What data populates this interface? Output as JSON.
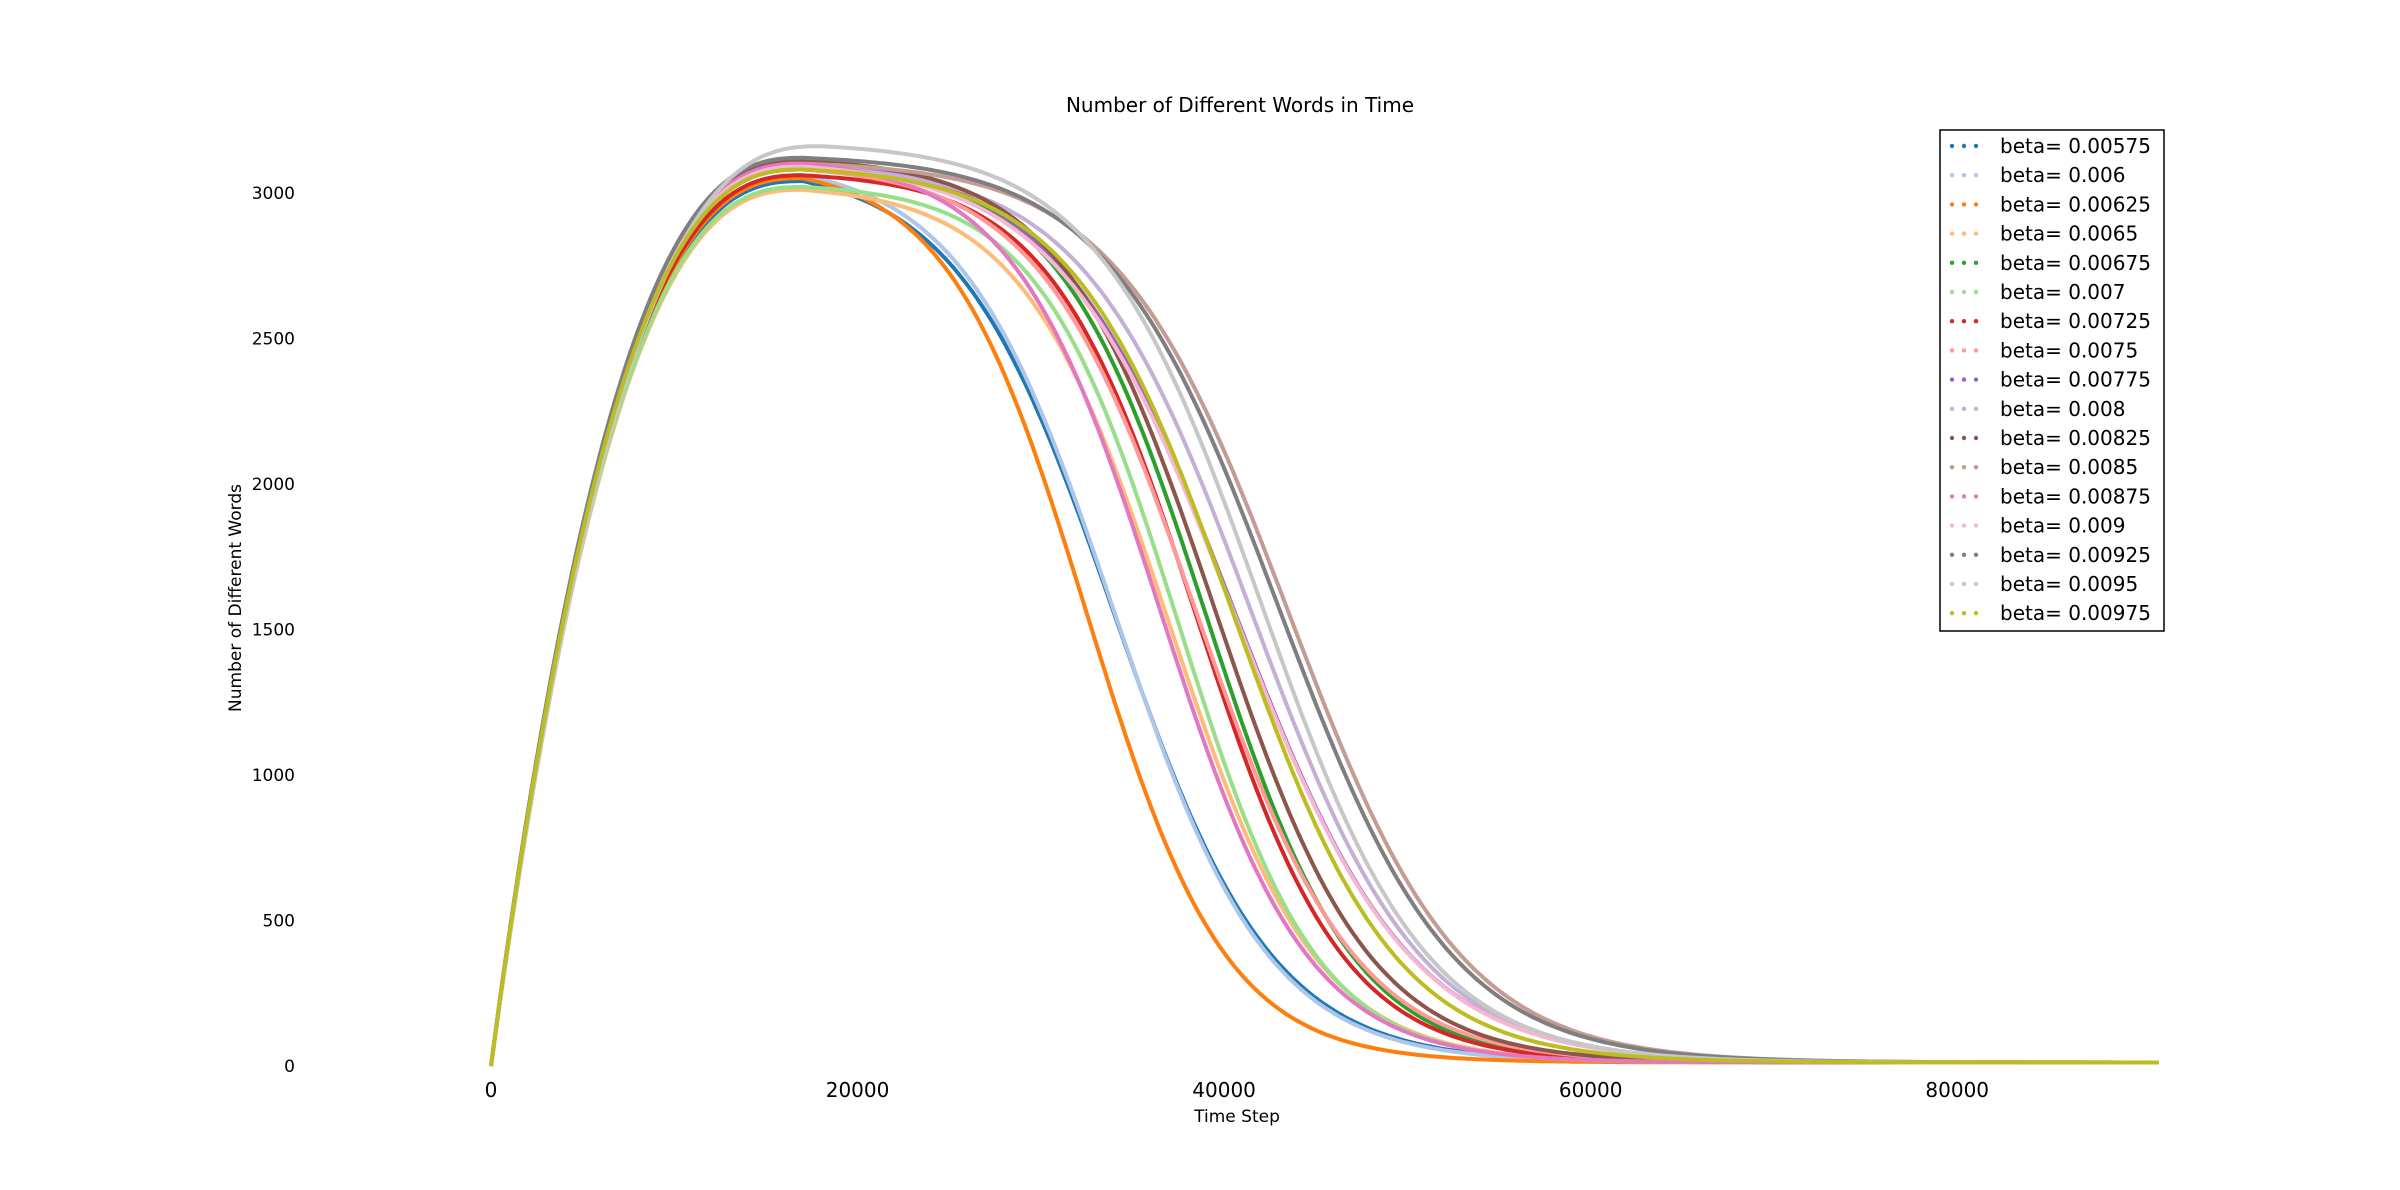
{
  "chart_data": {
    "type": "line",
    "title": "Number of Different Words in Time",
    "xlabel": "Time Step",
    "ylabel": "Number of Different Words",
    "xlim": [
      -6000,
      91500
    ],
    "ylim": [
      0,
      3250
    ],
    "x_ticks": [
      "0",
      "20000",
      "40000",
      "60000",
      "80000"
    ],
    "y_ticks": [
      "0",
      "500",
      "1000",
      "1500",
      "2000",
      "2500",
      "3000"
    ],
    "legend_position": "top-right",
    "series": [
      {
        "name": "beta= 0.00575",
        "color": "#1f77b4",
        "rise_end": 17000,
        "peak": 3040,
        "drop_start": 20000,
        "midpoint": 34000,
        "width": 4300
      },
      {
        "name": "beta= 0.006",
        "color": "#aec7e8",
        "rise_end": 17000,
        "peak": 3060,
        "drop_start": 21000,
        "midpoint": 34000,
        "width": 4200
      },
      {
        "name": "beta= 0.00625",
        "color": "#ff7f0e",
        "rise_end": 17000,
        "peak": 3050,
        "drop_start": 23000,
        "midpoint": 32500,
        "width": 3800
      },
      {
        "name": "beta= 0.0065",
        "color": "#ffbb78",
        "rise_end": 17000,
        "peak": 3010,
        "drop_start": 20000,
        "midpoint": 37000,
        "width": 4000
      },
      {
        "name": "beta= 0.00675",
        "color": "#2ca02c",
        "rise_end": 17000,
        "peak": 3080,
        "drop_start": 24000,
        "midpoint": 39000,
        "width": 4000
      },
      {
        "name": "beta= 0.007",
        "color": "#98df8a",
        "rise_end": 17000,
        "peak": 3020,
        "drop_start": 24000,
        "midpoint": 37500,
        "width": 3800
      },
      {
        "name": "beta= 0.00725",
        "color": "#d62728",
        "rise_end": 17000,
        "peak": 3060,
        "drop_start": 25000,
        "midpoint": 38500,
        "width": 4000
      },
      {
        "name": "beta= 0.0075",
        "color": "#ff9896",
        "rise_end": 17000,
        "peak": 3080,
        "drop_start": 25000,
        "midpoint": 38500,
        "width": 4300
      },
      {
        "name": "beta= 0.00775",
        "color": "#9467bd",
        "rise_end": 17000,
        "peak": 3110,
        "drop_start": 26000,
        "midpoint": 40500,
        "width": 4800
      },
      {
        "name": "beta= 0.008",
        "color": "#c5b0d5",
        "rise_end": 17000,
        "peak": 3090,
        "drop_start": 26000,
        "midpoint": 41500,
        "width": 4600
      },
      {
        "name": "beta= 0.00825",
        "color": "#8c564b",
        "rise_end": 17000,
        "peak": 3110,
        "drop_start": 26000,
        "midpoint": 39500,
        "width": 4200
      },
      {
        "name": "beta= 0.0085",
        "color": "#c49c94",
        "rise_end": 17000,
        "peak": 3100,
        "drop_start": 27000,
        "midpoint": 43500,
        "width": 4700
      },
      {
        "name": "beta= 0.00875",
        "color": "#e377c2",
        "rise_end": 17000,
        "peak": 3100,
        "drop_start": 24000,
        "midpoint": 36500,
        "width": 4000
      },
      {
        "name": "beta= 0.009",
        "color": "#f7b6d2",
        "rise_end": 17000,
        "peak": 3090,
        "drop_start": 26000,
        "midpoint": 40500,
        "width": 4800
      },
      {
        "name": "beta= 0.00925",
        "color": "#7f7f7f",
        "rise_end": 17000,
        "peak": 3120,
        "drop_start": 27000,
        "midpoint": 43000,
        "width": 4700
      },
      {
        "name": "beta= 0.0095",
        "color": "#c7c7c7",
        "rise_end": 18000,
        "peak": 3160,
        "drop_start": 25000,
        "midpoint": 42000,
        "width": 4500
      },
      {
        "name": "beta= 0.00975",
        "color": "#bcbd22",
        "rise_end": 17000,
        "peak": 3080,
        "drop_start": 28000,
        "midpoint": 40500,
        "width": 4400
      }
    ]
  }
}
